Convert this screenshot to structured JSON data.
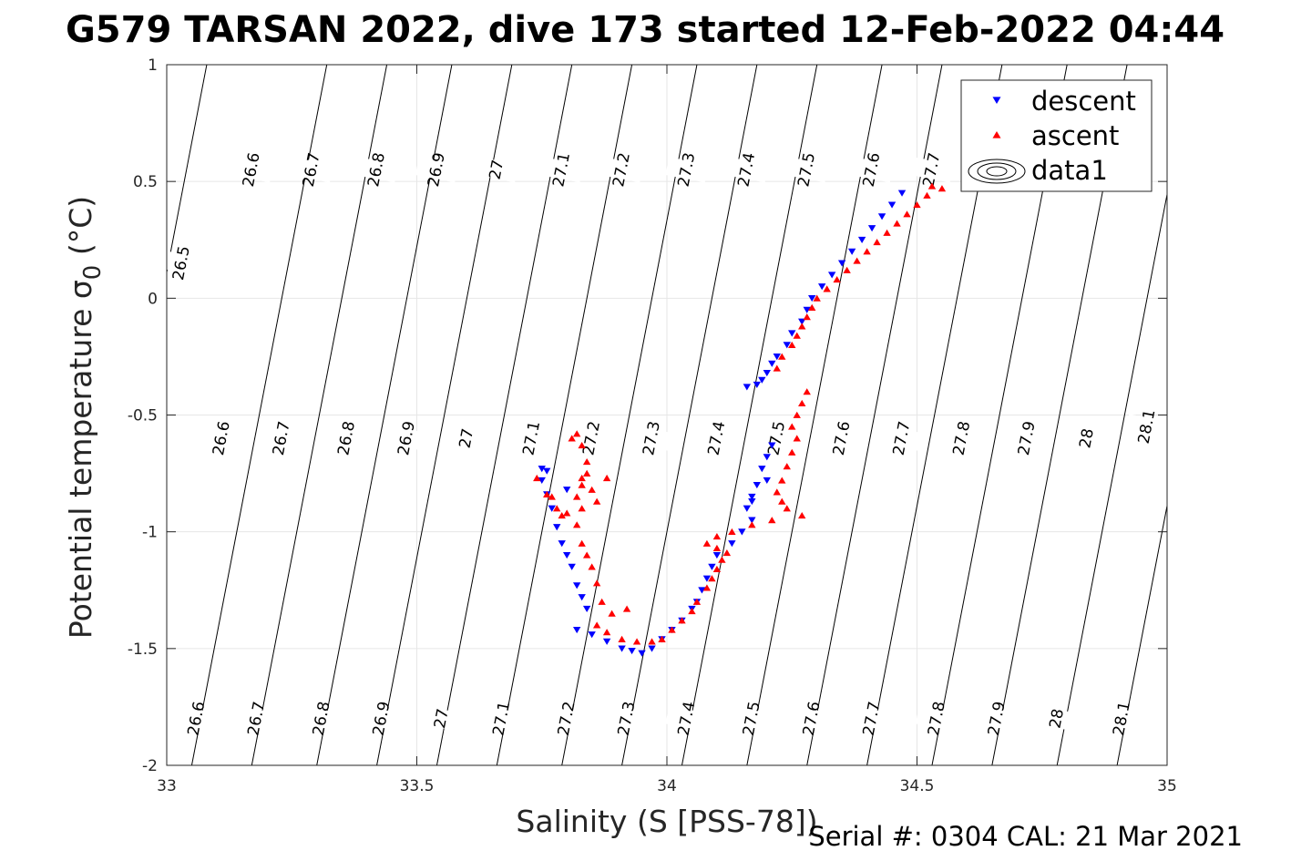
{
  "title": "G579 TARSAN 2022, dive 173 started 12-Feb-2022 04:44",
  "footer": "Serial #: 0304  CAL: 21 Mar 2021",
  "colors": {
    "descent": "#0000ff",
    "ascent": "#ff0000",
    "contour": "#000000",
    "grid": "#e6e6e6"
  },
  "chart_data": {
    "type": "scatter",
    "xlabel": "Salinity (S [PSS-78])",
    "ylabel_main": "Potential temperature σ",
    "ylabel_sub": "0",
    "ylabel_unit": " (°C)",
    "xlim": [
      33,
      35
    ],
    "ylim": [
      -2,
      1
    ],
    "xticks": [
      33,
      33.5,
      34,
      34.5,
      35
    ],
    "xtick_labels": [
      "33",
      "33.5",
      "34",
      "34.5",
      "35"
    ],
    "yticks": [
      -2,
      -1.5,
      -1,
      -0.5,
      0,
      0.5,
      1
    ],
    "ytick_labels": [
      "-2",
      "-1.5",
      "-1",
      "-0.5",
      "0",
      "0.5",
      "1"
    ],
    "grid": true,
    "legend": {
      "position": "top-right",
      "entries": [
        {
          "label": "descent",
          "marker": "triangle-down",
          "color": "#0000ff"
        },
        {
          "label": "ascent",
          "marker": "triangle-up",
          "color": "#ff0000"
        },
        {
          "label": "data1",
          "marker": "contour-ellipses",
          "color": "#000000"
        }
      ]
    },
    "contours": [
      {
        "level": "26.5",
        "bottom": [
          32.81,
          -2
        ],
        "top": [
          33.08,
          1
        ],
        "labels": [
          [
            33.03,
            0.15
          ]
        ]
      },
      {
        "level": "26.6",
        "bottom": [
          33.05,
          -2
        ],
        "top": [
          33.32,
          1
        ],
        "labels": [
          [
            33.17,
            0.55
          ],
          [
            33.11,
            -0.6
          ],
          [
            33.06,
            -1.8
          ]
        ]
      },
      {
        "level": "26.7",
        "bottom": [
          33.17,
          -2
        ],
        "top": [
          33.44,
          1
        ],
        "labels": [
          [
            33.29,
            0.55
          ],
          [
            33.23,
            -0.6
          ],
          [
            33.18,
            -1.8
          ]
        ]
      },
      {
        "level": "26.8",
        "bottom": [
          33.3,
          -2
        ],
        "top": [
          33.57,
          1
        ],
        "labels": [
          [
            33.42,
            0.55
          ],
          [
            33.36,
            -0.6
          ],
          [
            33.31,
            -1.8
          ]
        ]
      },
      {
        "level": "26.9",
        "bottom": [
          33.42,
          -2
        ],
        "top": [
          33.69,
          1
        ],
        "labels": [
          [
            33.54,
            0.55
          ],
          [
            33.48,
            -0.6
          ],
          [
            33.43,
            -1.8
          ]
        ]
      },
      {
        "level": "27",
        "bottom": [
          33.54,
          -2
        ],
        "top": [
          33.81,
          1
        ],
        "labels": [
          [
            33.66,
            0.55
          ],
          [
            33.6,
            -0.6
          ],
          [
            33.55,
            -1.8
          ]
        ]
      },
      {
        "level": "27.1",
        "bottom": [
          33.66,
          -2
        ],
        "top": [
          33.93,
          1
        ],
        "labels": [
          [
            33.79,
            0.55
          ],
          [
            33.73,
            -0.6
          ],
          [
            33.67,
            -1.8
          ]
        ]
      },
      {
        "level": "27.2",
        "bottom": [
          33.79,
          -2
        ],
        "top": [
          34.06,
          1
        ],
        "labels": [
          [
            33.91,
            0.55
          ],
          [
            33.85,
            -0.6
          ],
          [
            33.8,
            -1.8
          ]
        ]
      },
      {
        "level": "27.3",
        "bottom": [
          33.91,
          -2
        ],
        "top": [
          34.18,
          1
        ],
        "labels": [
          [
            34.04,
            0.55
          ],
          [
            33.97,
            -0.6
          ],
          [
            33.92,
            -1.8
          ]
        ]
      },
      {
        "level": "27.4",
        "bottom": [
          34.03,
          -2
        ],
        "top": [
          34.3,
          1
        ],
        "labels": [
          [
            34.16,
            0.55
          ],
          [
            34.1,
            -0.6
          ],
          [
            34.04,
            -1.8
          ]
        ]
      },
      {
        "level": "27.5",
        "bottom": [
          34.16,
          -2
        ],
        "top": [
          34.43,
          1
        ],
        "labels": [
          [
            34.28,
            0.55
          ],
          [
            34.22,
            -0.6
          ],
          [
            34.17,
            -1.8
          ]
        ]
      },
      {
        "level": "27.6",
        "bottom": [
          34.28,
          -2
        ],
        "top": [
          34.55,
          1
        ],
        "labels": [
          [
            34.41,
            0.55
          ],
          [
            34.35,
            -0.6
          ],
          [
            34.29,
            -1.8
          ]
        ]
      },
      {
        "level": "27.7",
        "bottom": [
          34.4,
          -2
        ],
        "top": [
          34.67,
          1
        ],
        "labels": [
          [
            34.53,
            0.55
          ],
          [
            34.47,
            -0.6
          ],
          [
            34.41,
            -1.8
          ]
        ]
      },
      {
        "level": "27.8",
        "bottom": [
          34.53,
          -2
        ],
        "top": [
          34.8,
          1
        ],
        "labels": [
          [
            34.59,
            -0.6
          ],
          [
            34.54,
            -1.8
          ]
        ]
      },
      {
        "level": "27.9",
        "bottom": [
          34.65,
          -2
        ],
        "top": [
          34.92,
          1
        ],
        "labels": [
          [
            34.72,
            -0.6
          ],
          [
            34.66,
            -1.8
          ]
        ]
      },
      {
        "level": "28",
        "bottom": [
          34.78,
          -2
        ],
        "top": [
          35.05,
          1
        ],
        "labels": [
          [
            34.84,
            -0.6
          ],
          [
            34.78,
            -1.8
          ]
        ]
      },
      {
        "level": "28.1",
        "bottom": [
          34.9,
          -2
        ],
        "top": [
          35.17,
          1
        ],
        "labels": [
          [
            34.96,
            -0.55
          ],
          [
            34.91,
            -1.8
          ]
        ]
      }
    ],
    "series": [
      {
        "name": "descent",
        "marker": "triangle-down",
        "color": "#0000ff",
        "points": [
          [
            34.47,
            0.45
          ],
          [
            34.45,
            0.4
          ],
          [
            34.43,
            0.35
          ],
          [
            34.41,
            0.3
          ],
          [
            34.39,
            0.25
          ],
          [
            34.37,
            0.2
          ],
          [
            34.35,
            0.15
          ],
          [
            34.33,
            0.1
          ],
          [
            34.31,
            0.05
          ],
          [
            34.29,
            0.0
          ],
          [
            34.28,
            -0.05
          ],
          [
            34.27,
            -0.1
          ],
          [
            34.25,
            -0.15
          ],
          [
            34.24,
            -0.2
          ],
          [
            34.22,
            -0.25
          ],
          [
            34.21,
            -0.28
          ],
          [
            34.2,
            -0.32
          ],
          [
            34.19,
            -0.35
          ],
          [
            34.18,
            -0.37
          ],
          [
            34.16,
            -0.38
          ],
          [
            34.21,
            -0.63
          ],
          [
            34.2,
            -0.68
          ],
          [
            34.19,
            -0.73
          ],
          [
            34.18,
            -0.8
          ],
          [
            34.17,
            -0.85
          ],
          [
            34.16,
            -0.9
          ],
          [
            34.17,
            -0.95
          ],
          [
            34.15,
            -1.0
          ],
          [
            34.13,
            -1.05
          ],
          [
            34.1,
            -1.1
          ],
          [
            34.09,
            -1.15
          ],
          [
            34.08,
            -1.2
          ],
          [
            34.07,
            -1.25
          ],
          [
            34.06,
            -1.3
          ],
          [
            34.05,
            -1.33
          ],
          [
            34.03,
            -1.38
          ],
          [
            34.01,
            -1.42
          ],
          [
            33.99,
            -1.46
          ],
          [
            33.97,
            -1.5
          ],
          [
            33.95,
            -1.52
          ],
          [
            33.93,
            -1.51
          ],
          [
            33.91,
            -1.5
          ],
          [
            33.88,
            -1.47
          ],
          [
            33.85,
            -1.44
          ],
          [
            33.82,
            -1.42
          ],
          [
            33.84,
            -1.33
          ],
          [
            33.83,
            -1.28
          ],
          [
            33.82,
            -1.23
          ],
          [
            33.81,
            -1.15
          ],
          [
            33.8,
            -1.1
          ],
          [
            33.79,
            -1.05
          ],
          [
            33.78,
            -0.98
          ],
          [
            33.77,
            -0.9
          ],
          [
            33.76,
            -0.84
          ],
          [
            33.75,
            -0.78
          ],
          [
            33.75,
            -0.73
          ],
          [
            33.76,
            -0.74
          ],
          [
            33.8,
            -0.82
          ],
          [
            34.17,
            -0.87
          ],
          [
            34.2,
            -0.78
          ]
        ]
      },
      {
        "name": "ascent",
        "marker": "triangle-up",
        "color": "#ff0000",
        "points": [
          [
            34.55,
            0.47
          ],
          [
            34.53,
            0.48
          ],
          [
            34.52,
            0.44
          ],
          [
            34.5,
            0.4
          ],
          [
            34.48,
            0.36
          ],
          [
            34.46,
            0.32
          ],
          [
            34.44,
            0.28
          ],
          [
            34.42,
            0.24
          ],
          [
            34.4,
            0.2
          ],
          [
            34.38,
            0.16
          ],
          [
            34.36,
            0.12
          ],
          [
            34.34,
            0.08
          ],
          [
            34.32,
            0.04
          ],
          [
            34.3,
            0.0
          ],
          [
            34.29,
            -0.04
          ],
          [
            34.28,
            -0.08
          ],
          [
            34.27,
            -0.12
          ],
          [
            34.26,
            -0.16
          ],
          [
            34.25,
            -0.2
          ],
          [
            34.23,
            -0.25
          ],
          [
            34.22,
            -0.3
          ],
          [
            34.28,
            -0.4
          ],
          [
            34.27,
            -0.45
          ],
          [
            34.26,
            -0.5
          ],
          [
            34.25,
            -0.55
          ],
          [
            34.26,
            -0.6
          ],
          [
            34.25,
            -0.66
          ],
          [
            34.24,
            -0.72
          ],
          [
            34.23,
            -0.78
          ],
          [
            34.22,
            -0.83
          ],
          [
            34.23,
            -0.87
          ],
          [
            34.24,
            -0.9
          ],
          [
            34.27,
            -0.93
          ],
          [
            34.21,
            -0.95
          ],
          [
            34.17,
            -0.97
          ],
          [
            34.13,
            -1.0
          ],
          [
            34.1,
            -1.02
          ],
          [
            34.08,
            -1.05
          ],
          [
            34.1,
            -1.07
          ],
          [
            34.12,
            -1.09
          ],
          [
            34.11,
            -1.12
          ],
          [
            34.1,
            -1.16
          ],
          [
            34.09,
            -1.2
          ],
          [
            34.08,
            -1.24
          ],
          [
            34.06,
            -1.3
          ],
          [
            34.05,
            -1.34
          ],
          [
            34.03,
            -1.38
          ],
          [
            34.01,
            -1.42
          ],
          [
            33.99,
            -1.46
          ],
          [
            33.97,
            -1.47
          ],
          [
            33.94,
            -1.47
          ],
          [
            33.91,
            -1.46
          ],
          [
            33.88,
            -1.43
          ],
          [
            33.86,
            -1.4
          ],
          [
            33.92,
            -1.33
          ],
          [
            33.89,
            -1.35
          ],
          [
            33.87,
            -1.3
          ],
          [
            33.86,
            -1.22
          ],
          [
            33.85,
            -1.15
          ],
          [
            33.84,
            -1.1
          ],
          [
            33.83,
            -1.05
          ],
          [
            33.82,
            -0.97
          ],
          [
            33.83,
            -0.9
          ],
          [
            33.82,
            -0.85
          ],
          [
            33.83,
            -0.8
          ],
          [
            33.84,
            -0.75
          ],
          [
            33.84,
            -0.7
          ],
          [
            33.83,
            -0.63
          ],
          [
            33.82,
            -0.58
          ],
          [
            33.81,
            -0.6
          ],
          [
            33.8,
            -0.92
          ],
          [
            33.78,
            -0.9
          ],
          [
            33.76,
            -0.84
          ],
          [
            33.74,
            -0.77
          ],
          [
            33.77,
            -0.85
          ],
          [
            33.86,
            -0.87
          ],
          [
            33.85,
            -0.82
          ],
          [
            33.79,
            -0.93
          ],
          [
            33.88,
            -0.77
          ],
          [
            33.83,
            -0.77
          ]
        ]
      }
    ]
  }
}
